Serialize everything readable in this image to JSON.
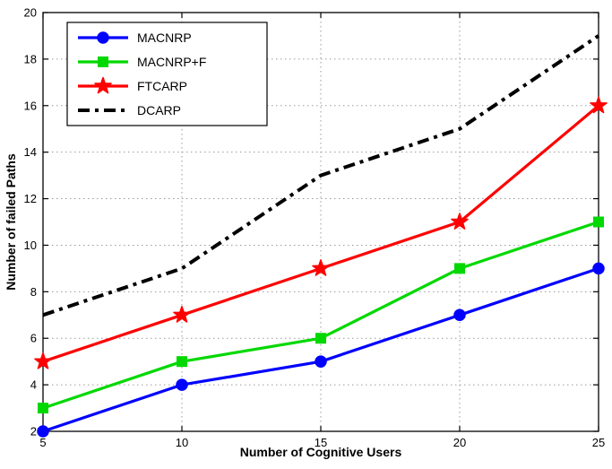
{
  "chart_data": {
    "type": "line",
    "title": "",
    "xlabel": "Number of Cognitive Users",
    "ylabel": "Number of failed Paths",
    "x": [
      5,
      10,
      15,
      20,
      25
    ],
    "xticks": [
      5,
      10,
      15,
      20,
      25
    ],
    "yticks": [
      2,
      4,
      6,
      8,
      10,
      12,
      14,
      16,
      18,
      20
    ],
    "xlim": [
      5,
      25
    ],
    "ylim": [
      2,
      20
    ],
    "grid": true,
    "legend_position": "top-left",
    "series": [
      {
        "name": "MACNRP",
        "values": [
          2,
          4,
          5,
          7,
          9
        ],
        "color": "#0000ff",
        "marker": "circle",
        "line_style": "solid"
      },
      {
        "name": "MACNRP+F",
        "values": [
          3,
          5,
          6,
          9,
          11
        ],
        "color": "#00d800",
        "marker": "square",
        "line_style": "solid"
      },
      {
        "name": "FTCARP",
        "values": [
          5,
          7,
          9,
          11,
          16
        ],
        "color": "#ff0000",
        "marker": "star",
        "line_style": "solid"
      },
      {
        "name": "DCARP",
        "values": [
          7,
          9,
          13,
          15,
          19
        ],
        "color": "#000000",
        "marker": "none",
        "line_style": "dashdot"
      }
    ],
    "colors": {
      "axis": "#000000",
      "grid": "#9a9a9a",
      "background": "#ffffff",
      "tick_text": "#000000"
    }
  }
}
